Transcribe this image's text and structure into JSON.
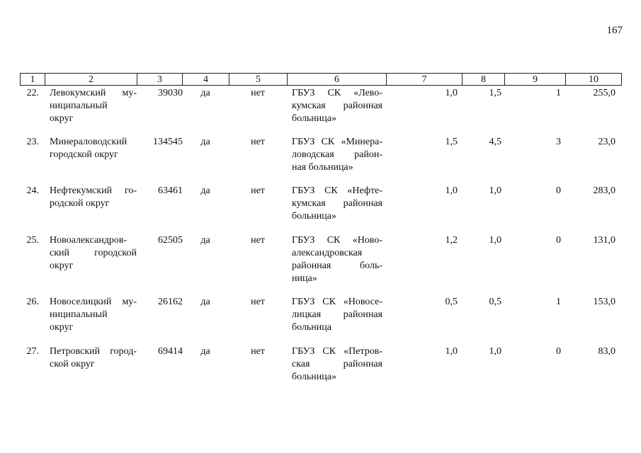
{
  "page_number": "167",
  "header": [
    "1",
    "2",
    "3",
    "4",
    "5",
    "6",
    "7",
    "8",
    "9",
    "10"
  ],
  "rows": [
    [
      "22.",
      [
        "Левокумский му-",
        "ниципальный",
        "округ"
      ],
      "39030",
      "да",
      "нет",
      [
        "ГБУЗ СК «Лево-",
        "кумская районная",
        "больница»"
      ],
      "1,0",
      "1,5",
      "1",
      "255,0"
    ],
    [
      "23.",
      [
        "Минераловодский",
        "городской округ"
      ],
      "134545",
      "да",
      "нет",
      [
        "ГБУЗ СК «Минера-",
        "ловодская район-",
        "ная больница»"
      ],
      "1,5",
      "4,5",
      "3",
      "23,0"
    ],
    [
      "24.",
      [
        "Нефтекумский го-",
        "родской округ"
      ],
      "63461",
      "да",
      "нет",
      [
        "ГБУЗ СК «Нефте-",
        "кумская районная",
        "больница»"
      ],
      "1,0",
      "1,0",
      "0",
      "283,0"
    ],
    [
      "25.",
      [
        "Новоалександров-",
        "ский городской",
        "округ"
      ],
      "62505",
      "да",
      "нет",
      [
        "ГБУЗ СК «Ново-",
        "александровская",
        "районная боль-",
        "ница»"
      ],
      "1,2",
      "1,0",
      "0",
      "131,0"
    ],
    [
      "26.",
      [
        "Новоселицкий му-",
        "ниципальный",
        "округ"
      ],
      "26162",
      "да",
      "нет",
      [
        "ГБУЗ СК «Новосе-",
        "лицкая районная",
        "больница"
      ],
      "0,5",
      "0,5",
      "1",
      "153,0"
    ],
    [
      "27.",
      [
        "Петровский город-",
        "ской округ"
      ],
      "69414",
      "да",
      "нет",
      [
        "ГБУЗ СК «Петров-",
        "ская районная",
        "больница»"
      ],
      "1,0",
      "1,0",
      "0",
      "83,0"
    ]
  ]
}
